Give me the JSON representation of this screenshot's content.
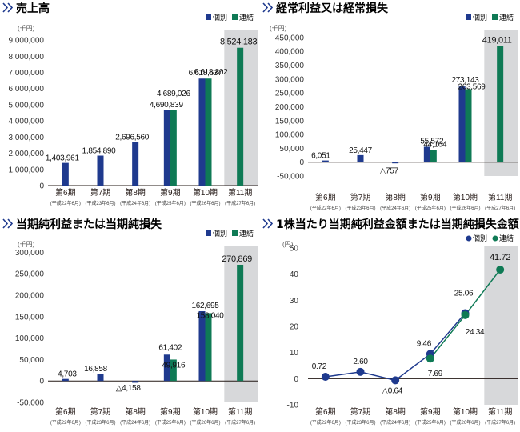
{
  "colors": {
    "ind": "#1f3a8e",
    "con": "#0f7a55",
    "shade": "#d7d8da",
    "chev": "#1f3a8e"
  },
  "legend": {
    "ind": "個別",
    "con": "連結"
  },
  "categories": [
    "第6期",
    "第7期",
    "第8期",
    "第9期",
    "第10期",
    "第11期"
  ],
  "subcategories": [
    "(平成22年6月)",
    "(平成23年6月)",
    "(平成24年6月)",
    "(平成25年6月)",
    "(平成26年6月)",
    "(平成27年6月)"
  ],
  "chart_data": [
    {
      "type": "bar",
      "title": "売上高",
      "unit": "(千円)",
      "ylim": [
        0,
        9500000
      ],
      "yticks": [
        0,
        1000000,
        2000000,
        3000000,
        4000000,
        5000000,
        6000000,
        7000000,
        8000000,
        9000000
      ],
      "ytick_labels": [
        "0",
        "1,000,000",
        "2,000,000",
        "3,000,000",
        "4,000,000",
        "5,000,000",
        "6,000,000",
        "7,000,000",
        "8,000,000",
        "9,000,000"
      ],
      "series": [
        {
          "name": "個別",
          "values": [
            1403961,
            1854890,
            2696560,
            4690839,
            6618637,
            null
          ],
          "labels": [
            "1,403,961",
            "1,854,890",
            "2,696,560",
            "4,690,839",
            "6,618,637",
            ""
          ]
        },
        {
          "name": "連結",
          "values": [
            null,
            null,
            null,
            4689026,
            6618802,
            8524183
          ],
          "labels": [
            "",
            "",
            "",
            "4,689,026",
            "6,618,802",
            "8,524,183"
          ]
        }
      ]
    },
    {
      "type": "bar",
      "title": "経常利益又は経常損失",
      "unit": "(千円)",
      "ylim": [
        -50000,
        470000
      ],
      "yticks": [
        -50000,
        0,
        50000,
        100000,
        150000,
        200000,
        250000,
        300000,
        350000,
        400000,
        450000
      ],
      "ytick_labels": [
        "-50,000",
        "0",
        "50,000",
        "100,000",
        "150,000",
        "200,000",
        "250,000",
        "300,000",
        "350,000",
        "400,000",
        "450,000"
      ],
      "series": [
        {
          "name": "個別",
          "values": [
            6051,
            25447,
            -757,
            55572,
            273143,
            null
          ],
          "labels": [
            "6,051",
            "25,447",
            "△757",
            "55,572",
            "273,143",
            ""
          ]
        },
        {
          "name": "連結",
          "values": [
            null,
            null,
            null,
            44164,
            263569,
            419011
          ],
          "labels": [
            "",
            "",
            "",
            "44,164",
            "263,569",
            "419,011"
          ]
        }
      ]
    },
    {
      "type": "bar",
      "title": "当期純利益または当期純損失",
      "unit": "(千円)",
      "ylim": [
        -50000,
        310000
      ],
      "yticks": [
        -50000,
        0,
        50000,
        100000,
        150000,
        200000,
        250000,
        300000
      ],
      "ytick_labels": [
        "-50,000",
        "0",
        "50,000",
        "100,000",
        "150,000",
        "200,000",
        "250,000",
        "300,000"
      ],
      "series": [
        {
          "name": "個別",
          "values": [
            4703,
            16858,
            -4158,
            61402,
            162695,
            null
          ],
          "labels": [
            "4,703",
            "16,858",
            "△4,158",
            "61,402",
            "162,695",
            ""
          ]
        },
        {
          "name": "連結",
          "values": [
            null,
            null,
            null,
            49916,
            158040,
            270869
          ],
          "labels": [
            "",
            "",
            "",
            "49,916",
            "158,040",
            "270,869"
          ]
        }
      ]
    },
    {
      "type": "line",
      "title": "1株当たり当期純利益金額または当期純損失金額",
      "unit": "(円)",
      "ylim": [
        -10,
        50
      ],
      "yticks": [
        -10,
        0,
        10,
        20,
        30,
        40,
        50
      ],
      "ytick_labels": [
        "-10",
        "0",
        "10",
        "20",
        "30",
        "40",
        "50"
      ],
      "series": [
        {
          "name": "個別",
          "values": [
            0.72,
            2.6,
            -0.64,
            9.46,
            25.06,
            null
          ],
          "labels": [
            "0.72",
            "2.60",
            "△0.64",
            "9.46",
            "25.06",
            ""
          ]
        },
        {
          "name": "連結",
          "values": [
            null,
            null,
            null,
            7.69,
            24.34,
            41.72
          ],
          "labels": [
            "",
            "",
            "",
            "7.69",
            "24.34",
            "41.72"
          ]
        }
      ]
    }
  ]
}
